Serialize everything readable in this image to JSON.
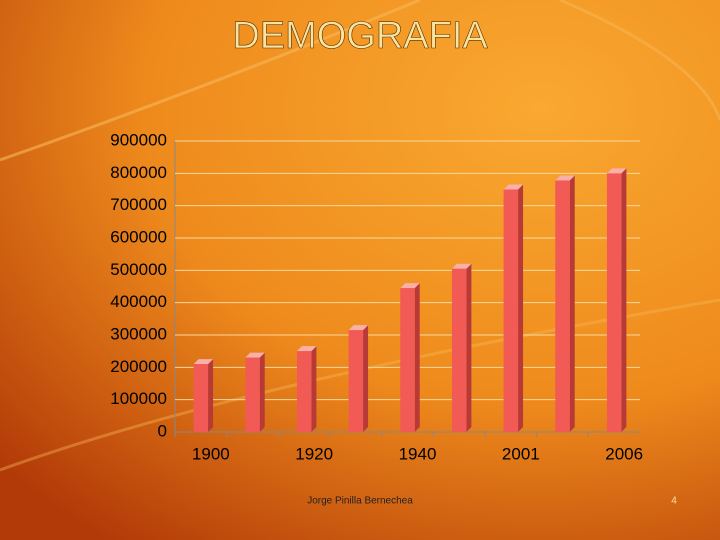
{
  "chart_data": {
    "type": "bar",
    "title": "DEMOGRAFIA",
    "categories": [
      "1900",
      null,
      "1920",
      null,
      "1940",
      null,
      "2001",
      null,
      "2006"
    ],
    "values": [
      210000,
      230000,
      250000,
      315000,
      445000,
      505000,
      750000,
      778000,
      800000
    ],
    "color": "#f25a55",
    "ylim": [
      0,
      900000
    ],
    "yticks": [
      0,
      100000,
      200000,
      300000,
      400000,
      500000,
      600000,
      700000,
      800000,
      900000
    ],
    "grid": true
  },
  "footer": {
    "author": "Jorge Pinilla Bernechea",
    "page": 4
  }
}
